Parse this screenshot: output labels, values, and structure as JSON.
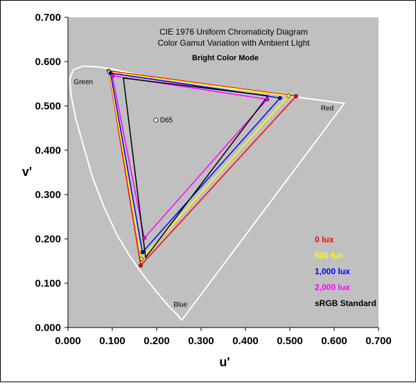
{
  "chart_data": {
    "type": "scatter",
    "title": "CIE 1976 Uniform Chromaticity Diagram",
    "subtitle_lines": [
      "Color Gamut Variation with Ambient LIght",
      "Bright Color Mode"
    ],
    "xlabel": "u'",
    "ylabel": "v'",
    "xlim": [
      0,
      0.7
    ],
    "ylim": [
      0,
      0.7
    ],
    "x_ticks": [
      "0.000",
      "0.100",
      "0.200",
      "0.300",
      "0.400",
      "0.500",
      "0.600",
      "0.700"
    ],
    "y_ticks": [
      "0.000",
      "0.100",
      "0.200",
      "0.300",
      "0.400",
      "0.500",
      "0.600",
      "0.700"
    ],
    "plot_background": "#c0c0c0",
    "grid": false,
    "region_labels": [
      {
        "text": "Green",
        "u": 0.013,
        "v": 0.549
      },
      {
        "text": "Red",
        "u": 0.57,
        "v": 0.49
      },
      {
        "text": "Blue",
        "u": 0.238,
        "v": 0.047
      }
    ],
    "white_point": {
      "label": "D65",
      "u": 0.198,
      "v": 0.468
    },
    "spectral_locus": [
      [
        0.256,
        0.016
      ],
      [
        0.25,
        0.025
      ],
      [
        0.23,
        0.045
      ],
      [
        0.2,
        0.08
      ],
      [
        0.17,
        0.118
      ],
      [
        0.14,
        0.16
      ],
      [
        0.11,
        0.21
      ],
      [
        0.08,
        0.275
      ],
      [
        0.055,
        0.34
      ],
      [
        0.035,
        0.41
      ],
      [
        0.018,
        0.47
      ],
      [
        0.008,
        0.52
      ],
      [
        0.004,
        0.56
      ],
      [
        0.012,
        0.582
      ],
      [
        0.035,
        0.59
      ],
      [
        0.07,
        0.588
      ],
      [
        0.1,
        0.583
      ],
      [
        0.15,
        0.572
      ],
      [
        0.2,
        0.563
      ],
      [
        0.26,
        0.555
      ],
      [
        0.32,
        0.546
      ],
      [
        0.38,
        0.538
      ],
      [
        0.44,
        0.531
      ],
      [
        0.5,
        0.522
      ],
      [
        0.56,
        0.514
      ],
      [
        0.623,
        0.506
      ],
      [
        0.256,
        0.016
      ]
    ],
    "series": [
      {
        "name": "0 lux",
        "color": "#ff0000",
        "points": [
          [
            0.092,
            0.579
          ],
          [
            0.514,
            0.522
          ],
          [
            0.164,
            0.14
          ]
        ]
      },
      {
        "name": "500 lux",
        "color": "#ffff00",
        "points": [
          [
            0.093,
            0.577
          ],
          [
            0.497,
            0.523
          ],
          [
            0.166,
            0.155
          ]
        ]
      },
      {
        "name": "1,000 lux",
        "color": "#0000ff",
        "points": [
          [
            0.096,
            0.574
          ],
          [
            0.478,
            0.518
          ],
          [
            0.168,
            0.17
          ]
        ]
      },
      {
        "name": "2,000 lux",
        "color": "#ff00ff",
        "points": [
          [
            0.1,
            0.568
          ],
          [
            0.449,
            0.515
          ],
          [
            0.172,
            0.202
          ]
        ]
      },
      {
        "name": "sRGB Standard",
        "color": "#000000",
        "points": [
          [
            0.125,
            0.563
          ],
          [
            0.451,
            0.523
          ],
          [
            0.175,
            0.158
          ]
        ]
      }
    ]
  }
}
